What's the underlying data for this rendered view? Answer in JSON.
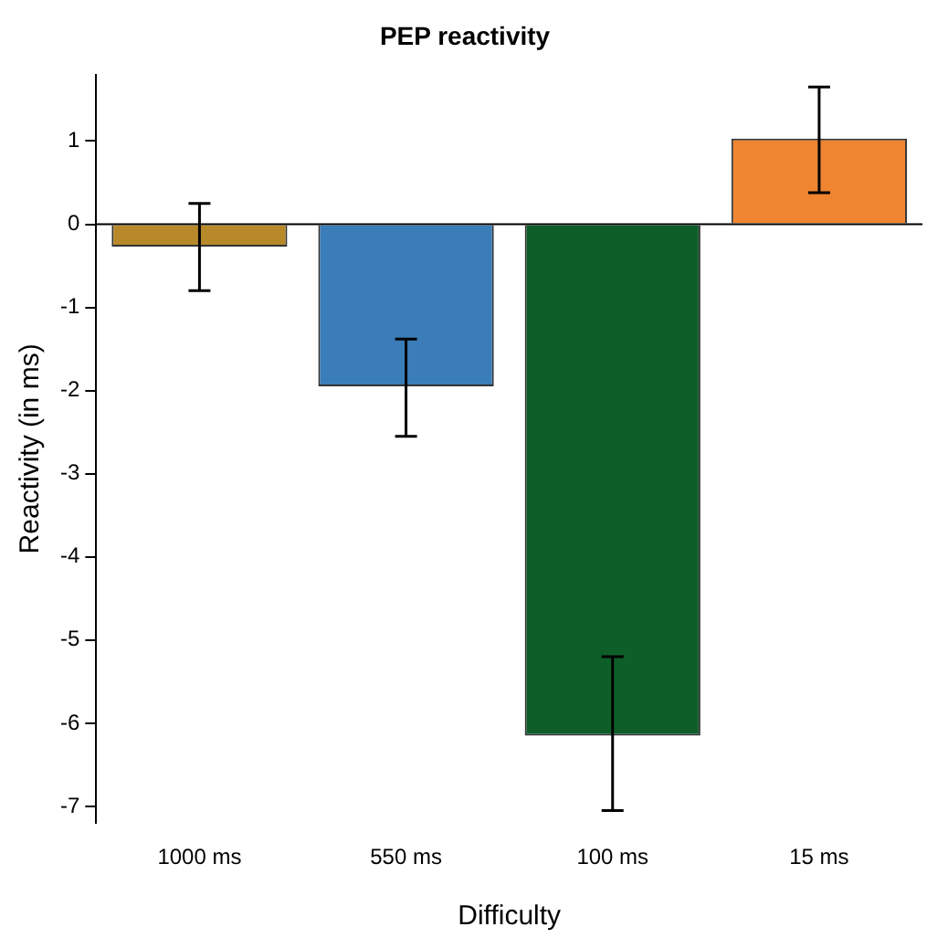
{
  "chart_data": {
    "type": "bar",
    "title": "PEP reactivity",
    "xlabel": "Difficulty",
    "ylabel": "Reactivity (in ms)",
    "categories": [
      "1000 ms",
      "550 ms",
      "100 ms",
      "15 ms"
    ],
    "values": [
      -0.27,
      -1.95,
      -6.15,
      1.03
    ],
    "colors": [
      "#b8892a",
      "#3a7db8",
      "#0e5e2a",
      "#ef8531"
    ],
    "errors": [
      [
        -0.8,
        0.25
      ],
      [
        -2.55,
        -1.38
      ],
      [
        -7.05,
        -5.2
      ],
      [
        0.38,
        1.65
      ]
    ],
    "ylim": [
      -7.2,
      1.8
    ],
    "yticks": [
      -7,
      -6,
      -5,
      -4,
      -3,
      -2,
      -1,
      0,
      1
    ],
    "ref_lines": [
      {
        "axis": "y",
        "value": 0,
        "color": "#000000"
      }
    ],
    "grid": false,
    "legend": false
  }
}
